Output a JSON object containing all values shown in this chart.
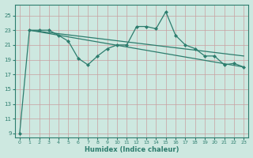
{
  "xlabel": "Humidex (Indice chaleur)",
  "bg_color": "#cde8e0",
  "line_color": "#2d7d6e",
  "grid_color_v": "#c8a0a0",
  "grid_color_h": "#c8a0a0",
  "xlim": [
    -0.5,
    23.5
  ],
  "ylim": [
    8.5,
    26.5
  ],
  "yticks": [
    9,
    11,
    13,
    15,
    17,
    19,
    21,
    23,
    25
  ],
  "xticks": [
    0,
    1,
    2,
    3,
    4,
    5,
    6,
    7,
    8,
    9,
    10,
    11,
    12,
    13,
    14,
    15,
    16,
    17,
    18,
    19,
    20,
    21,
    22,
    23
  ],
  "x": [
    0,
    1,
    2,
    3,
    4,
    5,
    6,
    7,
    8,
    9,
    10,
    11,
    12,
    13,
    14,
    15,
    16,
    17,
    18,
    19,
    20,
    21,
    22,
    23
  ],
  "y_main": [
    9,
    23,
    23,
    23,
    22.3,
    21.5,
    19.2,
    18.3,
    19.5,
    20.5,
    21.0,
    21.0,
    23.5,
    23.5,
    23.2,
    25.5,
    22.3,
    21.0,
    20.5,
    19.5,
    19.5,
    18.3,
    18.5,
    18.0
  ],
  "y_line1_start": 23.0,
  "y_line1_end": 19.5,
  "y_line2_start": 23.0,
  "y_line2_end": 18.0
}
